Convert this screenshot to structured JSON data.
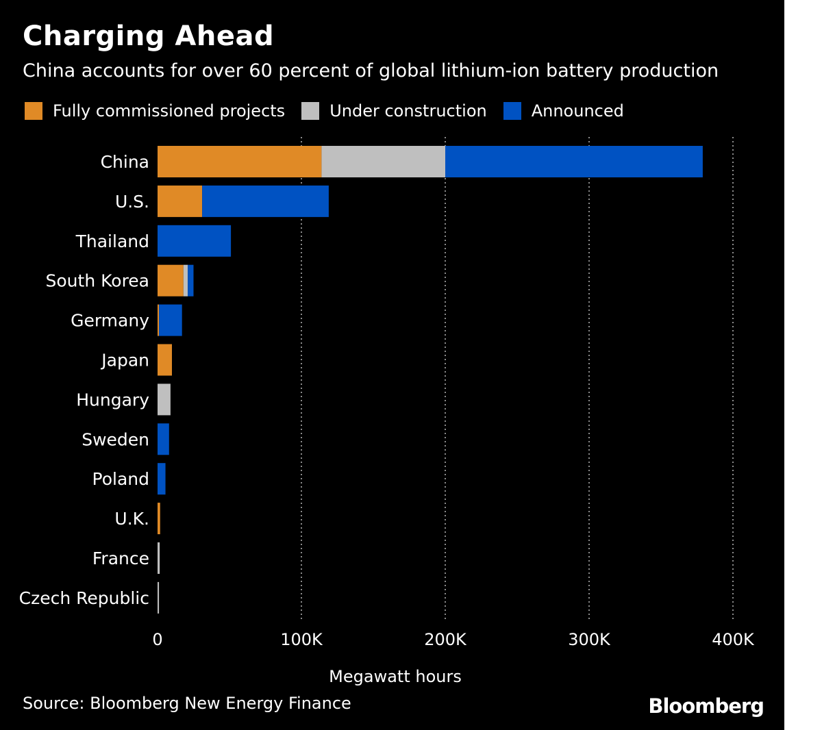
{
  "title": "Charging Ahead",
  "subtitle": "China accounts for over 60 percent of global lithium-ion battery production",
  "source": "Source: Bloomberg New Energy Finance",
  "brand": "Bloomberg",
  "colors": {
    "background": "#000000",
    "fully_commissioned": "#E08A26",
    "under_construction": "#BFBFBF",
    "announced": "#0052C2",
    "text": "#FFFFFF",
    "gridline": "#8C8C8C"
  },
  "chart_data": {
    "type": "bar",
    "orientation": "horizontal",
    "stacked": true,
    "title": "Charging Ahead",
    "subtitle": "China accounts for over 60 percent of global lithium-ion battery production",
    "xlabel": "Megawatt hours",
    "ylabel": "",
    "xlim": [
      0,
      400000
    ],
    "x_ticks": [
      0,
      100000,
      200000,
      300000,
      400000
    ],
    "x_tick_labels": [
      "0",
      "100K",
      "200K",
      "300K",
      "400K"
    ],
    "grid": "vertical dotted",
    "legend_position": "top-left",
    "categories": [
      "China",
      "U.S.",
      "Thailand",
      "South Korea",
      "Germany",
      "Japan",
      "Hungary",
      "Sweden",
      "Poland",
      "U.K.",
      "France",
      "Czech Republic"
    ],
    "series": [
      {
        "name": "Fully commissioned projects",
        "color": "#E08A26",
        "values": [
          114000,
          31000,
          0,
          18000,
          1000,
          10000,
          0,
          0,
          0,
          1800,
          0,
          0
        ]
      },
      {
        "name": "Under construction",
        "color": "#BFBFBF",
        "values": [
          86000,
          0,
          0,
          3000,
          0,
          0,
          9000,
          0,
          0,
          0,
          1500,
          1000
        ]
      },
      {
        "name": "Announced",
        "color": "#0052C2",
        "values": [
          179000,
          88000,
          51000,
          4000,
          16000,
          0,
          0,
          8000,
          5500,
          0,
          0,
          0
        ]
      }
    ]
  }
}
